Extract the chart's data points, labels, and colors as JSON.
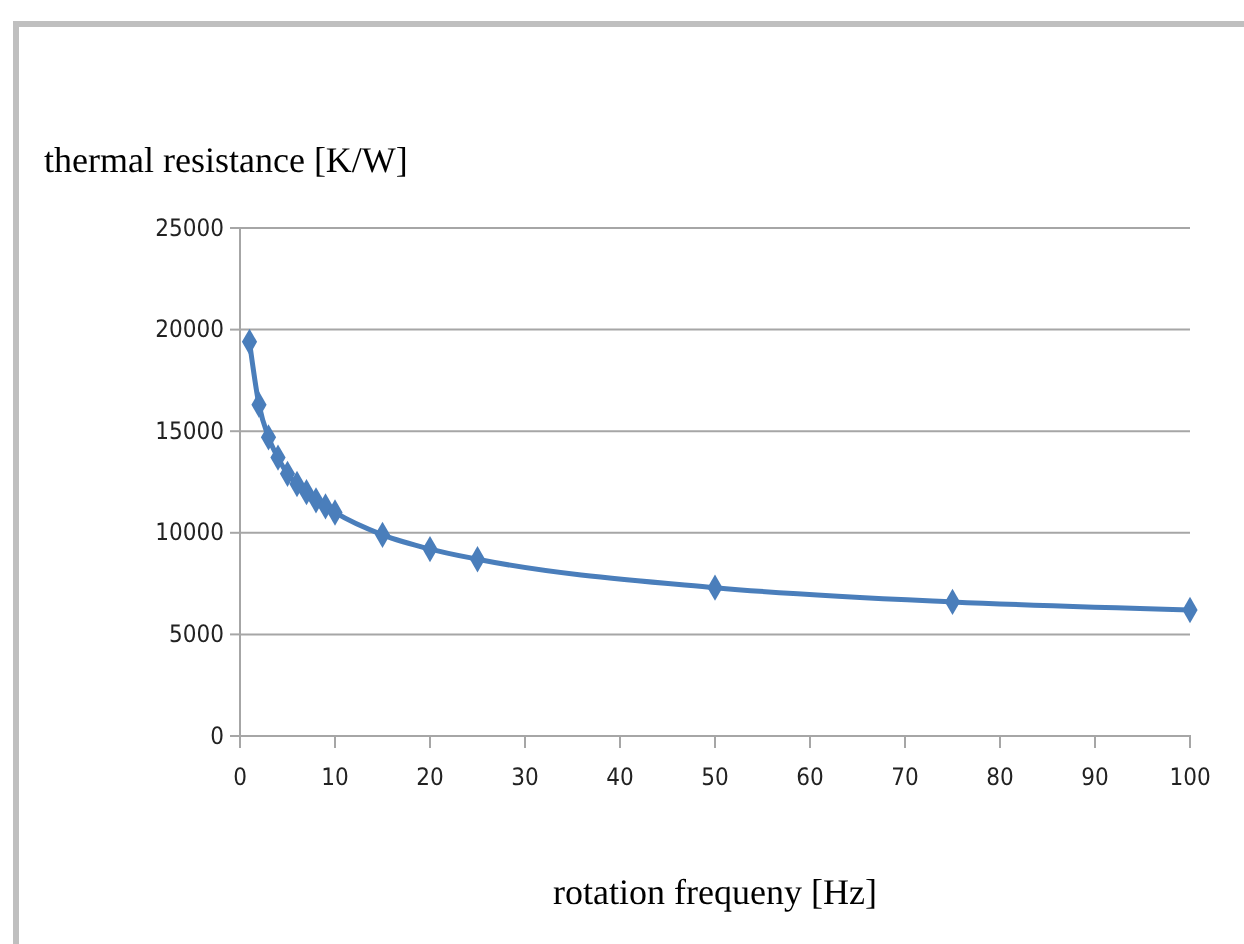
{
  "chart_data": {
    "type": "line",
    "ylabel": "thermal resistance [K/W]",
    "xlabel": "rotation frequeny [Hz]",
    "x": [
      1,
      2,
      3,
      4,
      5,
      6,
      7,
      8,
      9,
      10,
      15,
      20,
      25,
      50,
      75,
      100
    ],
    "series": [
      {
        "color": "#4a7ebb",
        "values": [
          19400,
          16300,
          14700,
          13700,
          12900,
          12400,
          12000,
          11600,
          11300,
          11000,
          9900,
          9200,
          8700,
          7300,
          6600,
          6200
        ]
      }
    ],
    "xlim": [
      0,
      100
    ],
    "xticks": [
      0,
      10,
      20,
      30,
      40,
      50,
      60,
      70,
      80,
      90,
      100
    ],
    "ylim": [
      0,
      25000
    ],
    "yticks": [
      0,
      5000,
      10000,
      15000,
      20000,
      25000
    ],
    "grid": "y",
    "marker": "diamond",
    "line_style": "solid"
  }
}
